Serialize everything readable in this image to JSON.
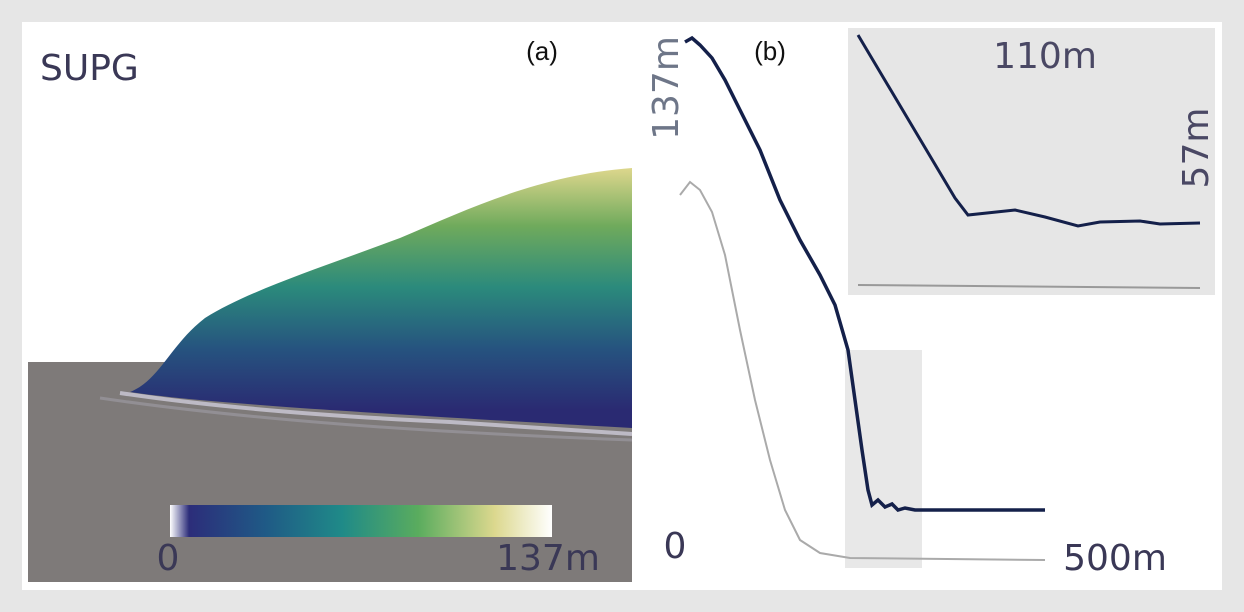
{
  "panel_a": {
    "label": "(a)",
    "method": "SUPG",
    "colorbar": {
      "min_label": "0",
      "max_label": "137m"
    }
  },
  "panel_b": {
    "label": "(b)",
    "y_label": "137m",
    "x_start_label": "0",
    "x_end_label": "500m",
    "inset": {
      "x_label": "110m",
      "y_label": "57m"
    }
  }
}
